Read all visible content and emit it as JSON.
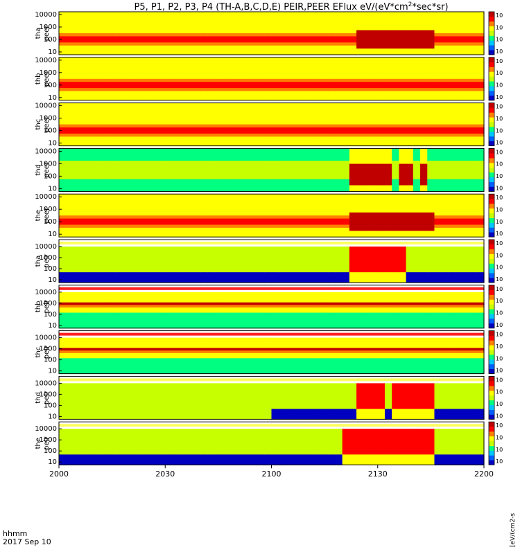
{
  "chart_data": {
    "type": "heatmap",
    "title": "P5, P1, P2, P3, P4 (TH-A,B,C,D,E) PEIR,PEER EFlux eV/(eV*cm",
    "title_sup": "2",
    "title_end": "*sec*sr)",
    "x_label_line1": "hhmm",
    "x_label_line2": "2017 Sep 10",
    "x_ticks": [
      "2000",
      "2030",
      "2100",
      "2130",
      "2200"
    ],
    "x_range": [
      "20:00",
      "22:00"
    ],
    "y_scale": "log",
    "y_tick_labels": [
      "10",
      "100",
      "1000",
      "10000"
    ],
    "units_label_right": "[eV/(cm2-s",
    "colorbar_labels": [
      "10",
      "10",
      "10",
      "10"
    ],
    "colormap": [
      "#0000c0",
      "#0060ff",
      "#00c8ff",
      "#00ff80",
      "#c8ff00",
      "#ffff00",
      "#ff8000",
      "#ff0000",
      "#c00000"
    ],
    "panels": [
      {
        "probe": "tha",
        "species": "peer",
        "mode": "electron",
        "events": [
          [
            0.7,
            0.81
          ],
          [
            0.82,
            0.88
          ]
        ],
        "band": 0.45
      },
      {
        "probe": "thb",
        "species": "peer",
        "mode": "electron",
        "events": [],
        "band": 0.62
      },
      {
        "probe": "thc",
        "species": "peer",
        "mode": "electron",
        "events": [],
        "band": 0.62
      },
      {
        "probe": "thd",
        "species": "peer",
        "mode": "electron_cool",
        "events": [
          [
            0.69,
            0.71
          ],
          [
            0.72,
            0.78
          ],
          [
            0.8,
            0.84
          ],
          [
            0.845,
            0.87
          ]
        ],
        "band": 0.45
      },
      {
        "probe": "the",
        "species": "peer",
        "mode": "electron",
        "events": [
          [
            0.68,
            0.78
          ],
          [
            0.78,
            0.88
          ]
        ],
        "band": 0.45
      },
      {
        "probe": "tha",
        "species": "peir",
        "mode": "ion",
        "events": [
          [
            0.68,
            0.8
          ],
          [
            0.8,
            0.82
          ]
        ],
        "band": 0.7
      },
      {
        "probe": "thb",
        "species": "peir",
        "mode": "ion_band",
        "events": [],
        "band": 0.3
      },
      {
        "probe": "thc",
        "species": "peir",
        "mode": "ion_band",
        "events": [],
        "band": 0.3
      },
      {
        "probe": "thd",
        "species": "peir",
        "mode": "ion_late",
        "events": [
          [
            0.7,
            0.76
          ],
          [
            0.78,
            0.83
          ],
          [
            0.84,
            0.88
          ]
        ],
        "band": 0.7
      },
      {
        "probe": "the",
        "species": "peir",
        "mode": "ion",
        "events": [
          [
            0.67,
            0.78
          ],
          [
            0.78,
            0.88
          ]
        ],
        "band": 0.7
      }
    ]
  }
}
